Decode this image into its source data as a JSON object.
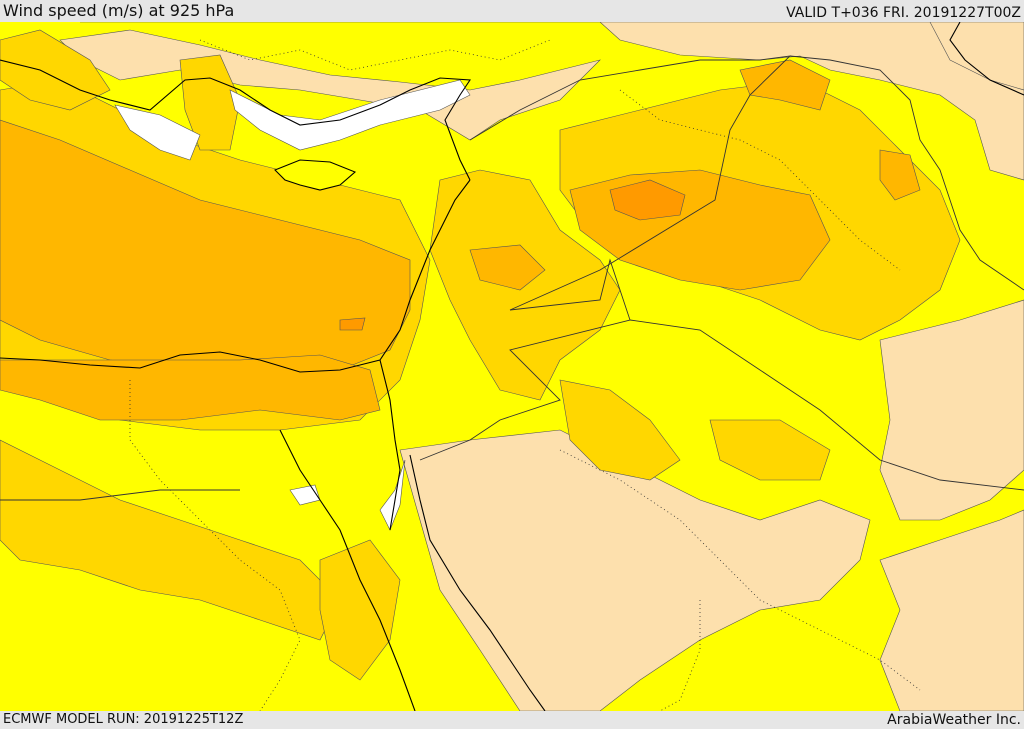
{
  "header": {
    "title": "Wind speed (m/s) at 925 hPa",
    "valid": "VALID T+036 FRI. 20191227T00Z"
  },
  "footer": {
    "model_run": "ECMWF MODEL RUN: 20191225T12Z",
    "credit": "ArabiaWeather Inc."
  },
  "map": {
    "region": "Eastern Mediterranean / Levant / Arabian Peninsula",
    "field": "wind speed",
    "colors": {
      "very_light": "#fde0ad",
      "light": "#ffff00",
      "medium": "#ffd700",
      "strong": "#ffb700",
      "very_strong": "#ff9a00",
      "missing": "#ffffff",
      "coastline": "#000000",
      "border": "#333333"
    }
  }
}
